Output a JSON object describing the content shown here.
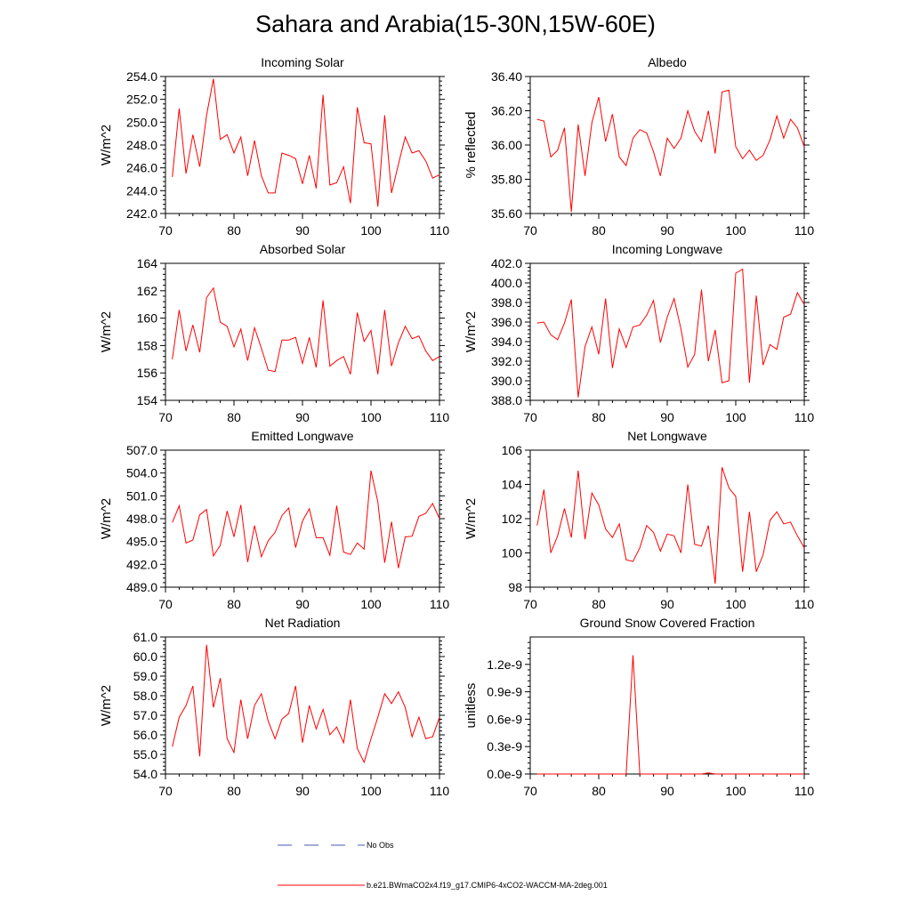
{
  "page_title": "Sahara and Arabia(15-30N,15W-60E)",
  "legend": [
    {
      "label": "No Obs",
      "color": "#4a57b5",
      "style": "dashed"
    },
    {
      "label": "b.e21.BWmaCO2x4.f19_g17.CMIP6-4xCO2-WACCM-MA-2deg.001",
      "color": "#ff0000",
      "style": "solid"
    }
  ],
  "chart_data": [
    {
      "type": "line",
      "title": "Incoming Solar",
      "ylabel": "W/m^2",
      "xlim": [
        70,
        110
      ],
      "xticks": [
        70,
        80,
        90,
        100,
        110
      ],
      "xtick_labels": [
        "70",
        "80",
        "90",
        "100",
        "110"
      ],
      "ylim": [
        242.0,
        254.0
      ],
      "yticks": [
        242,
        244,
        246,
        248,
        250,
        252,
        254
      ],
      "ytick_labels": [
        "242.0",
        "244.0",
        "246.0",
        "248.0",
        "250.0",
        "252.0",
        "254.0"
      ],
      "x": [
        71,
        72,
        73,
        74,
        75,
        76,
        77,
        78,
        79,
        80,
        81,
        82,
        83,
        84,
        85,
        86,
        87,
        88,
        89,
        90,
        91,
        92,
        93,
        94,
        95,
        96,
        97,
        98,
        99,
        100,
        101,
        102,
        103,
        104,
        105,
        106,
        107,
        108,
        109,
        110
      ],
      "series": [
        {
          "name": "b.e21.BWmaCO2x4.f19_g17.CMIP6-4xCO2-WACCM-MA-2deg.001",
          "color": "#ff0000",
          "values": [
            245.2,
            251.2,
            245.5,
            248.9,
            246.1,
            250.6,
            253.8,
            248.5,
            248.9,
            247.3,
            248.7,
            245.3,
            248.4,
            245.3,
            243.8,
            243.8,
            247.3,
            247.1,
            246.8,
            244.6,
            247.1,
            244.2,
            252.4,
            244.5,
            244.7,
            246.1,
            242.9,
            251.3,
            248.2,
            248.1,
            242.6,
            250.6,
            243.8,
            246.3,
            248.7,
            247.3,
            247.5,
            246.6,
            245.1,
            245.4
          ]
        }
      ]
    },
    {
      "type": "line",
      "title": "Albedo",
      "ylabel": "% reflected",
      "xlim": [
        70,
        110
      ],
      "xticks": [
        70,
        80,
        90,
        100,
        110
      ],
      "xtick_labels": [
        "70",
        "80",
        "90",
        "100",
        "110"
      ],
      "ylim": [
        35.6,
        36.4
      ],
      "yticks": [
        35.6,
        35.8,
        36.0,
        36.2,
        36.4
      ],
      "ytick_labels": [
        "35.60",
        "35.80",
        "36.00",
        "36.20",
        "36.40"
      ],
      "x": [
        71,
        72,
        73,
        74,
        75,
        76,
        77,
        78,
        79,
        80,
        81,
        82,
        83,
        84,
        85,
        86,
        87,
        88,
        89,
        90,
        91,
        92,
        93,
        94,
        95,
        96,
        97,
        98,
        99,
        100,
        101,
        102,
        103,
        104,
        105,
        106,
        107,
        108,
        109,
        110
      ],
      "series": [
        {
          "name": "b.e21.BWmaCO2x4.f19_g17.CMIP6-4xCO2-WACCM-MA-2deg.001",
          "color": "#ff0000",
          "values": [
            36.15,
            36.14,
            35.93,
            35.97,
            36.1,
            35.61,
            36.12,
            35.82,
            36.13,
            36.28,
            36.02,
            36.18,
            35.93,
            35.88,
            36.04,
            36.09,
            36.07,
            35.96,
            35.82,
            36.04,
            35.98,
            36.04,
            36.2,
            36.08,
            36.02,
            36.2,
            35.95,
            36.31,
            36.32,
            35.99,
            35.92,
            35.97,
            35.91,
            35.94,
            36.03,
            36.17,
            36.04,
            36.15,
            36.1,
            35.99
          ]
        }
      ]
    },
    {
      "type": "line",
      "title": "Absorbed Solar",
      "ylabel": "W/m^2",
      "xlim": [
        70,
        110
      ],
      "xticks": [
        70,
        80,
        90,
        100,
        110
      ],
      "xtick_labels": [
        "70",
        "80",
        "90",
        "100",
        "110"
      ],
      "ylim": [
        154,
        164
      ],
      "yticks": [
        154,
        156,
        158,
        160,
        162,
        164
      ],
      "ytick_labels": [
        "154",
        "156",
        "158",
        "160",
        "162",
        "164"
      ],
      "x": [
        71,
        72,
        73,
        74,
        75,
        76,
        77,
        78,
        79,
        80,
        81,
        82,
        83,
        84,
        85,
        86,
        87,
        88,
        89,
        90,
        91,
        92,
        93,
        94,
        95,
        96,
        97,
        98,
        99,
        100,
        101,
        102,
        103,
        104,
        105,
        106,
        107,
        108,
        109,
        110
      ],
      "series": [
        {
          "name": "b.e21.BWmaCO2x4.f19_g17.CMIP6-4xCO2-WACCM-MA-2deg.001",
          "color": "#ff0000",
          "values": [
            157.0,
            160.6,
            157.6,
            159.5,
            157.5,
            161.5,
            162.2,
            159.7,
            159.4,
            157.9,
            159.2,
            156.9,
            159.3,
            157.8,
            156.2,
            156.1,
            158.4,
            158.4,
            158.6,
            156.7,
            158.6,
            156.4,
            161.3,
            156.5,
            156.9,
            157.2,
            155.9,
            160.4,
            158.3,
            159.1,
            155.9,
            160.6,
            156.5,
            158.2,
            159.4,
            158.5,
            158.7,
            157.6,
            156.9,
            157.2
          ]
        }
      ]
    },
    {
      "type": "line",
      "title": "Incoming Longwave",
      "ylabel": "W/m^2",
      "xlim": [
        70,
        110
      ],
      "xticks": [
        70,
        80,
        90,
        100,
        110
      ],
      "xtick_labels": [
        "70",
        "80",
        "90",
        "100",
        "110"
      ],
      "ylim": [
        388.0,
        402.0
      ],
      "yticks": [
        388,
        390,
        392,
        394,
        396,
        398,
        400,
        402
      ],
      "ytick_labels": [
        "388.0",
        "390.0",
        "392.0",
        "394.0",
        "396.0",
        "398.0",
        "400.0",
        "402.0"
      ],
      "x": [
        71,
        72,
        73,
        74,
        75,
        76,
        77,
        78,
        79,
        80,
        81,
        82,
        83,
        84,
        85,
        86,
        87,
        88,
        89,
        90,
        91,
        92,
        93,
        94,
        95,
        96,
        97,
        98,
        99,
        100,
        101,
        102,
        103,
        104,
        105,
        106,
        107,
        108,
        109,
        110
      ],
      "series": [
        {
          "name": "b.e21.BWmaCO2x4.f19_g17.CMIP6-4xCO2-WACCM-MA-2deg.001",
          "color": "#ff0000",
          "values": [
            395.9,
            396.0,
            394.7,
            394.2,
            395.9,
            398.3,
            388.3,
            393.5,
            395.5,
            392.7,
            398.4,
            391.3,
            395.3,
            393.4,
            395.5,
            395.7,
            396.7,
            398.2,
            393.9,
            396.5,
            398.4,
            395.3,
            391.4,
            392.7,
            399.3,
            392.0,
            395.2,
            389.8,
            390.0,
            401.0,
            401.4,
            389.8,
            398.7,
            391.6,
            393.7,
            393.2,
            396.5,
            396.8,
            399.0,
            397.8
          ]
        }
      ]
    },
    {
      "type": "line",
      "title": "Emitted Longwave",
      "ylabel": "W/m^2",
      "xlim": [
        70,
        110
      ],
      "xticks": [
        70,
        80,
        90,
        100,
        110
      ],
      "xtick_labels": [
        "70",
        "80",
        "90",
        "100",
        "110"
      ],
      "ylim": [
        489.0,
        507.0
      ],
      "yticks": [
        489,
        492,
        495,
        498,
        501,
        504,
        507
      ],
      "ytick_labels": [
        "489.0",
        "492.0",
        "495.0",
        "498.0",
        "501.0",
        "504.0",
        "507.0"
      ],
      "x": [
        71,
        72,
        73,
        74,
        75,
        76,
        77,
        78,
        79,
        80,
        81,
        82,
        83,
        84,
        85,
        86,
        87,
        88,
        89,
        90,
        91,
        92,
        93,
        94,
        95,
        96,
        97,
        98,
        99,
        100,
        101,
        102,
        103,
        104,
        105,
        106,
        107,
        108,
        109,
        110
      ],
      "series": [
        {
          "name": "b.e21.BWmaCO2x4.f19_g17.CMIP6-4xCO2-WACCM-MA-2deg.001",
          "color": "#ff0000",
          "values": [
            497.5,
            499.7,
            494.8,
            495.2,
            498.5,
            499.2,
            493.1,
            494.5,
            499.0,
            495.6,
            499.8,
            492.3,
            497.1,
            493.0,
            495.1,
            496.2,
            498.4,
            499.4,
            494.2,
            497.7,
            499.3,
            495.5,
            495.5,
            493.2,
            499.7,
            493.6,
            493.3,
            494.8,
            494.0,
            504.3,
            500.2,
            492.2,
            497.6,
            491.5,
            495.6,
            495.7,
            498.3,
            498.7,
            500.0,
            498.0
          ]
        }
      ]
    },
    {
      "type": "line",
      "title": "Net Longwave",
      "ylabel": "W/m^2",
      "xlim": [
        70,
        110
      ],
      "xticks": [
        70,
        80,
        90,
        100,
        110
      ],
      "xtick_labels": [
        "70",
        "80",
        "90",
        "100",
        "110"
      ],
      "ylim": [
        98,
        106
      ],
      "yticks": [
        98,
        100,
        102,
        104,
        106
      ],
      "ytick_labels": [
        "98",
        "100",
        "102",
        "104",
        "106"
      ],
      "x": [
        71,
        72,
        73,
        74,
        75,
        76,
        77,
        78,
        79,
        80,
        81,
        82,
        83,
        84,
        85,
        86,
        87,
        88,
        89,
        90,
        91,
        92,
        93,
        94,
        95,
        96,
        97,
        98,
        99,
        100,
        101,
        102,
        103,
        104,
        105,
        106,
        107,
        108,
        109,
        110
      ],
      "series": [
        {
          "name": "b.e21.BWmaCO2x4.f19_g17.CMIP6-4xCO2-WACCM-MA-2deg.001",
          "color": "#ff0000",
          "values": [
            101.6,
            103.7,
            100.0,
            101.0,
            102.6,
            100.9,
            104.8,
            100.8,
            103.5,
            102.8,
            101.4,
            100.9,
            101.7,
            99.6,
            99.5,
            100.3,
            101.6,
            101.2,
            100.1,
            101.1,
            101.0,
            100.0,
            104.0,
            100.5,
            100.4,
            101.6,
            98.2,
            105.0,
            103.8,
            103.3,
            98.9,
            102.4,
            98.9,
            99.9,
            101.9,
            102.4,
            101.7,
            101.8,
            101.0,
            100.3
          ]
        }
      ]
    },
    {
      "type": "line",
      "title": "Net Radiation",
      "ylabel": "W/m^2",
      "xlim": [
        70,
        110
      ],
      "xticks": [
        70,
        80,
        90,
        100,
        110
      ],
      "xtick_labels": [
        "70",
        "80",
        "90",
        "100",
        "110"
      ],
      "ylim": [
        54.0,
        61.0
      ],
      "yticks": [
        54,
        55,
        56,
        57,
        58,
        59,
        60,
        61
      ],
      "ytick_labels": [
        "54.0",
        "55.0",
        "56.0",
        "57.0",
        "58.0",
        "59.0",
        "60.0",
        "61.0"
      ],
      "x": [
        71,
        72,
        73,
        74,
        75,
        76,
        77,
        78,
        79,
        80,
        81,
        82,
        83,
        84,
        85,
        86,
        87,
        88,
        89,
        90,
        91,
        92,
        93,
        94,
        95,
        96,
        97,
        98,
        99,
        100,
        101,
        102,
        103,
        104,
        105,
        106,
        107,
        108,
        109,
        110
      ],
      "series": [
        {
          "name": "b.e21.BWmaCO2x4.f19_g17.CMIP6-4xCO2-WACCM-MA-2deg.001",
          "color": "#ff0000",
          "values": [
            55.4,
            56.9,
            57.5,
            58.5,
            54.9,
            60.6,
            57.4,
            58.9,
            55.8,
            55.1,
            57.8,
            55.8,
            57.5,
            58.1,
            56.7,
            55.8,
            56.8,
            57.1,
            58.5,
            55.6,
            57.5,
            56.3,
            57.3,
            56.0,
            56.4,
            55.6,
            57.8,
            55.3,
            54.6,
            55.8,
            56.9,
            58.1,
            57.6,
            58.2,
            57.4,
            55.9,
            56.9,
            55.8,
            55.9,
            56.9
          ]
        }
      ]
    },
    {
      "type": "line",
      "title": "Ground Snow Covered Fraction",
      "ylabel": "unitless",
      "xlim": [
        70,
        110
      ],
      "xticks": [
        70,
        80,
        90,
        100,
        110
      ],
      "xtick_labels": [
        "70",
        "80",
        "90",
        "100",
        "110"
      ],
      "ylim": [
        0,
        1.5e-09
      ],
      "yticks": [
        0,
        3e-10,
        6e-10,
        9e-10,
        1.2e-09
      ],
      "ytick_labels": [
        "0.0e-9",
        "0.3e-9",
        "0.6e-9",
        "0.9e-9",
        "1.2e-9"
      ],
      "x": [
        71,
        72,
        73,
        74,
        75,
        76,
        77,
        78,
        79,
        80,
        81,
        82,
        83,
        84,
        85,
        86,
        87,
        88,
        89,
        90,
        91,
        92,
        93,
        94,
        95,
        96,
        97,
        98,
        99,
        100,
        101,
        102,
        103,
        104,
        105,
        106,
        107,
        108,
        109,
        110
      ],
      "series": [
        {
          "name": "b.e21.BWmaCO2x4.f19_g17.CMIP6-4xCO2-WACCM-MA-2deg.001",
          "color": "#ff0000",
          "values": [
            0,
            0,
            0,
            0,
            0,
            0,
            0,
            0,
            0,
            0,
            0,
            0,
            0,
            0,
            1.3e-09,
            0,
            0,
            0,
            0,
            0,
            0,
            0,
            0,
            0,
            0,
            1.2e-11,
            0,
            0,
            0,
            0,
            0,
            0,
            0,
            0,
            0,
            0,
            0,
            0,
            0,
            0
          ]
        }
      ]
    }
  ]
}
